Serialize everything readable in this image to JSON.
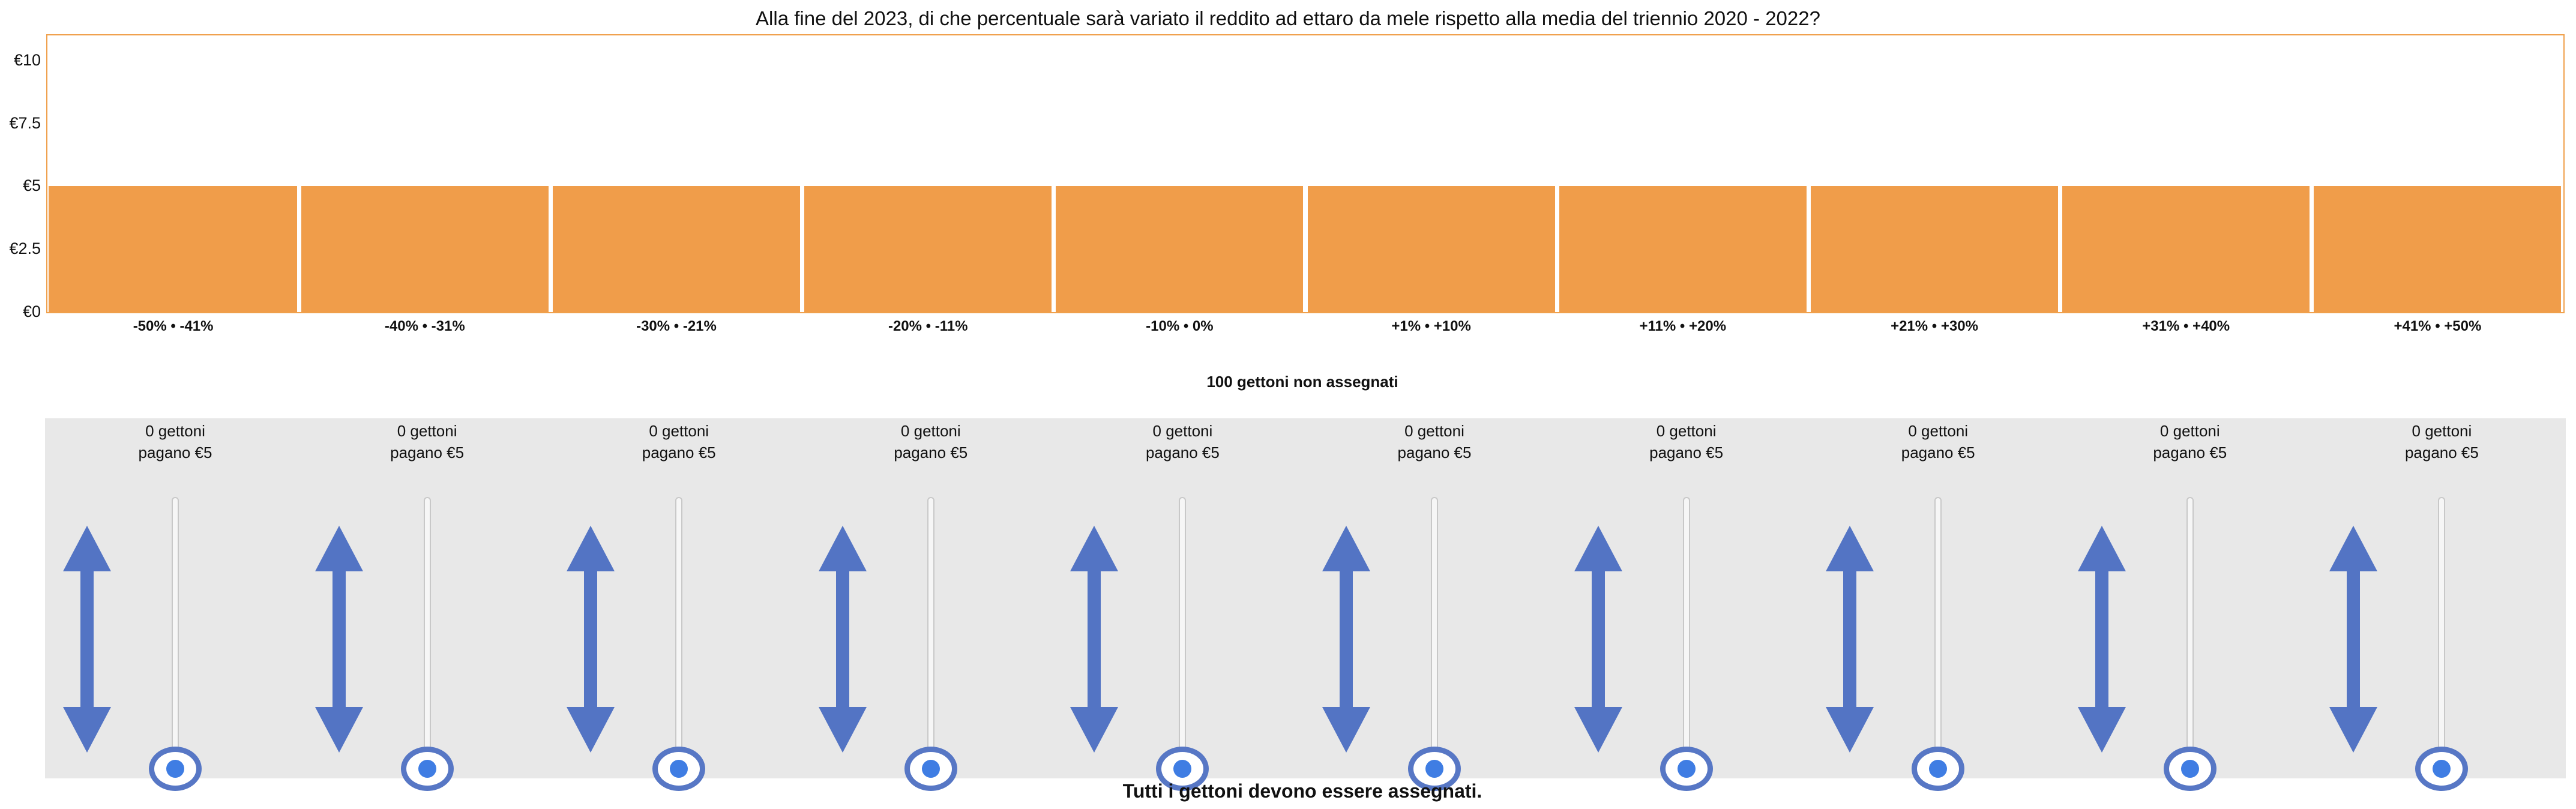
{
  "question": "Alla fine del 2023, di che percentuale sarà variato il reddito ad ettaro da mele rispetto alla media del triennio 2020 - 2022?",
  "chart_data": {
    "type": "bar",
    "categories": [
      "-50% • -41%",
      "-40% • -31%",
      "-30% • -21%",
      "-20% • -11%",
      "-10% • 0%",
      "+1% • +10%",
      "+11% • +20%",
      "+21% • +30%",
      "+31% • +40%",
      "+41% • +50%"
    ],
    "values": [
      5,
      5,
      5,
      5,
      5,
      5,
      5,
      5,
      5,
      5
    ],
    "ylim": [
      0,
      11
    ],
    "yticks": [
      0,
      2.5,
      5,
      7.5,
      10
    ],
    "ytick_labels": [
      "€0",
      "€2.5",
      "€5",
      "€7.5",
      "€10"
    ],
    "bar_color": "#f09d4a",
    "border_color": "#f0a04b"
  },
  "unassigned_label": "100 gettoni non assegnati",
  "sliders": [
    {
      "tokens": "0 gettoni",
      "pays": "pagano €5",
      "value": 0
    },
    {
      "tokens": "0 gettoni",
      "pays": "pagano €5",
      "value": 0
    },
    {
      "tokens": "0 gettoni",
      "pays": "pagano €5",
      "value": 0
    },
    {
      "tokens": "0 gettoni",
      "pays": "pagano €5",
      "value": 0
    },
    {
      "tokens": "0 gettoni",
      "pays": "pagano €5",
      "value": 0
    },
    {
      "tokens": "0 gettoni",
      "pays": "pagano €5",
      "value": 0
    },
    {
      "tokens": "0 gettoni",
      "pays": "pagano €5",
      "value": 0
    },
    {
      "tokens": "0 gettoni",
      "pays": "pagano €5",
      "value": 0
    },
    {
      "tokens": "0 gettoni",
      "pays": "pagano €5",
      "value": 0
    },
    {
      "tokens": "0 gettoni",
      "pays": "pagano €5",
      "value": 0
    }
  ],
  "footer": "Tutti i gettoni devono essere assegnati.",
  "colors": {
    "arrow": "#5374c4",
    "thumb_ring": "#5777c5",
    "thumb_dot": "#3f7de3",
    "panel": "#e8e8e8"
  },
  "icons": {
    "arrow": "up-down-arrow-icon"
  }
}
